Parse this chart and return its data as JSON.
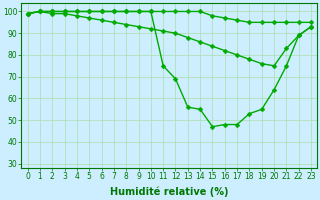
{
  "line1_x": [
    0,
    1,
    2,
    3,
    4,
    5,
    6,
    7,
    8,
    9,
    10,
    11,
    12,
    13,
    14,
    15,
    16,
    17,
    18,
    19,
    20,
    21,
    22,
    23
  ],
  "line1_y": [
    99,
    100,
    100,
    100,
    100,
    100,
    100,
    100,
    100,
    100,
    100,
    100,
    100,
    100,
    100,
    98,
    97,
    96,
    95,
    95,
    95,
    95,
    95,
    95
  ],
  "line2_x": [
    0,
    1,
    2,
    3,
    4,
    5,
    6,
    7,
    8,
    9,
    10,
    11,
    12,
    13,
    14,
    15,
    16,
    17,
    18,
    19,
    20,
    21,
    22,
    23
  ],
  "line2_y": [
    99,
    100,
    99,
    99,
    98,
    97,
    96,
    95,
    94,
    93,
    92,
    91,
    90,
    88,
    86,
    84,
    82,
    80,
    78,
    76,
    75,
    83,
    89,
    93
  ],
  "line3_x": [
    0,
    1,
    2,
    3,
    4,
    5,
    6,
    7,
    8,
    9,
    10,
    11,
    12,
    13,
    14,
    15,
    16,
    17,
    18,
    19,
    20,
    21,
    22,
    23
  ],
  "line3_y": [
    99,
    100,
    100,
    100,
    100,
    100,
    100,
    100,
    100,
    100,
    100,
    75,
    69,
    56,
    55,
    47,
    48,
    48,
    53,
    55,
    64,
    75,
    89,
    93
  ],
  "line_color": "#00aa00",
  "marker": "D",
  "markersize": 2.5,
  "linewidth": 1.0,
  "xlabel": "Humidité relative (%)",
  "xlabel_color": "#007700",
  "xlabel_fontsize": 7,
  "xlim": [
    -0.5,
    23.5
  ],
  "ylim": [
    28,
    104
  ],
  "yticks": [
    30,
    40,
    50,
    60,
    70,
    80,
    90,
    100
  ],
  "xticks": [
    0,
    1,
    2,
    3,
    4,
    5,
    6,
    7,
    8,
    9,
    10,
    11,
    12,
    13,
    14,
    15,
    16,
    17,
    18,
    19,
    20,
    21,
    22,
    23
  ],
  "tick_color": "#007700",
  "tick_fontsize": 5.5,
  "grid_color": "#aaddaa",
  "bg_color": "#cceeff",
  "spine_color": "#007700"
}
